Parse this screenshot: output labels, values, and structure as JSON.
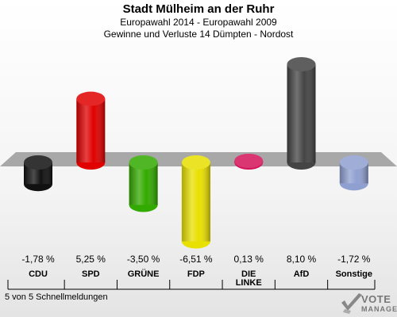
{
  "header": {
    "title": "Stadt Mülheim an der Ruhr",
    "subtitle1": "Europawahl 2014 - Europawahl 2009",
    "subtitle2": "Gewinne und Verluste 14 Dümpten - Nordost"
  },
  "footer": {
    "status": "5 von 5 Schnellmeldungen"
  },
  "logo": {
    "line1": "VOTE",
    "line2": "MANAGER"
  },
  "chart_data": {
    "type": "bar",
    "categories": [
      "CDU",
      "SPD",
      "GRÜNE",
      "FDP",
      "DIE LINKE",
      "AfD",
      "Sonstige"
    ],
    "values": [
      -1.78,
      5.25,
      -3.5,
      -6.51,
      0.13,
      8.1,
      -1.72
    ],
    "value_labels": [
      "-1,78 %",
      "5,25 %",
      "-3,50 %",
      "-6,51 %",
      "0,13 %",
      "8,10 %",
      "-1,72 %"
    ],
    "colors": [
      "#111111",
      "#e00000",
      "#33aa00",
      "#e8e000",
      "#d4145a",
      "#444444",
      "#8f9fd0"
    ],
    "ylim": [
      -6.51,
      8.1
    ]
  }
}
